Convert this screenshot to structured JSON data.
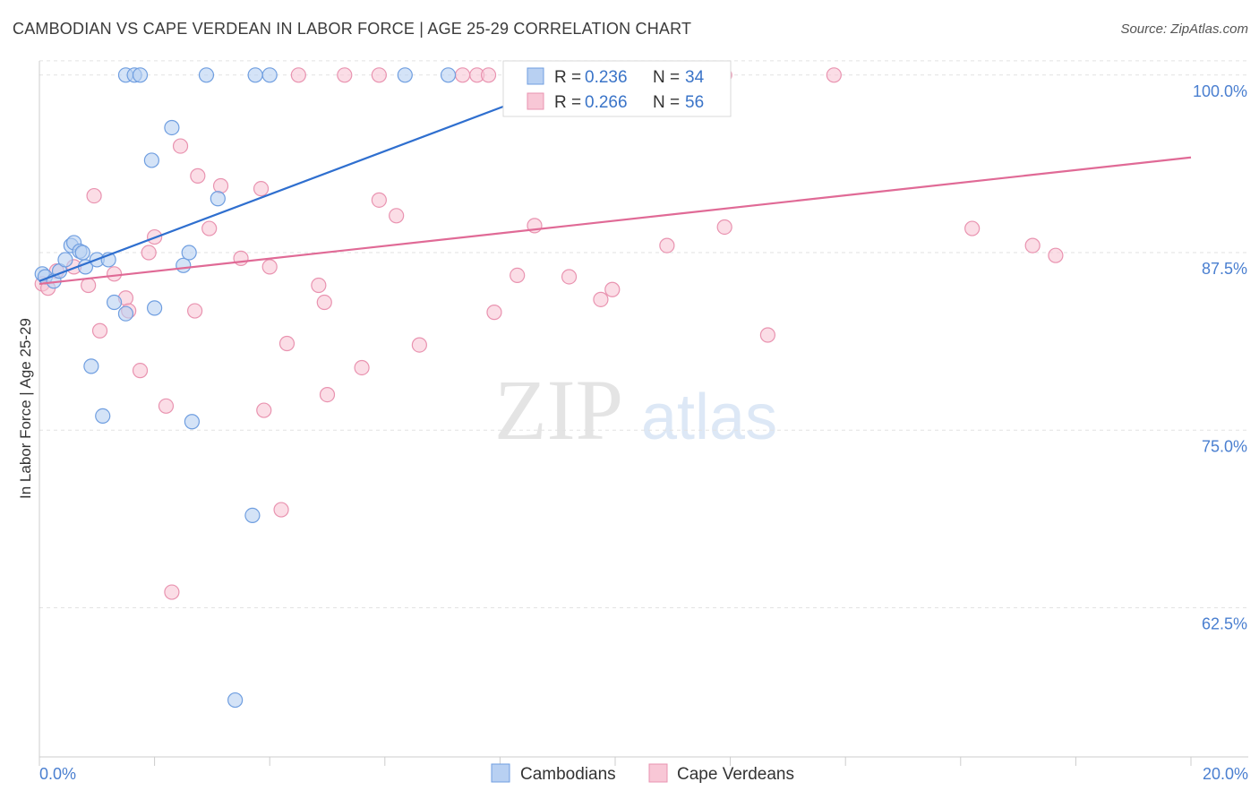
{
  "title": "CAMBODIAN VS CAPE VERDEAN IN LABOR FORCE | AGE 25-29 CORRELATION CHART",
  "source": "Source: ZipAtlas.com",
  "watermark": {
    "zip": "ZIP",
    "atlas": "atlas"
  },
  "colors": {
    "cambodian_fill": "#b8d0f2",
    "cambodian_stroke": "#6f9ee0",
    "cambodian_line": "#2f6fcf",
    "capeverdean_fill": "#f8c7d6",
    "capeverdean_stroke": "#e993b0",
    "capeverdean_line": "#e06a96",
    "tick_label": "#4a7fd0",
    "grid": "#e2e2e2"
  },
  "legend": {
    "rows": [
      {
        "r_label": "R = ",
        "r_value": "0.236",
        "n_label": "N = ",
        "n_value": "34"
      },
      {
        "r_label": "R = ",
        "r_value": "0.266",
        "n_label": "N = ",
        "n_value": "56"
      }
    ]
  },
  "bottom_legend": [
    "Cambodians",
    "Cape Verdeans"
  ],
  "chart_data": {
    "type": "scatter",
    "title": "CAMBODIAN VS CAPE VERDEAN IN LABOR FORCE | AGE 25-29 CORRELATION CHART",
    "xlabel": "",
    "ylabel": "In Labor Force | Age 25-29",
    "xlim": [
      0,
      20
    ],
    "ylim": [
      52,
      101.5
    ],
    "x_tick_labels": [
      "0.0%",
      "20.0%"
    ],
    "y_ticks": [
      62.5,
      75.0,
      87.5,
      100.0
    ],
    "y_tick_labels": [
      "62.5%",
      "75.0%",
      "87.5%",
      "100.0%"
    ],
    "series": [
      {
        "name": "Cambodians",
        "R": 0.236,
        "N": 34,
        "trend": {
          "x": [
            0,
            8.2
          ],
          "y": [
            85.5,
            98.0
          ],
          "dash_x": [
            8.2,
            9.2
          ],
          "dash_y": [
            98.0,
            99.5
          ]
        },
        "points": [
          [
            0.05,
            86.0
          ],
          [
            0.1,
            85.8
          ],
          [
            0.25,
            85.5
          ],
          [
            0.35,
            86.2
          ],
          [
            0.45,
            87.0
          ],
          [
            0.55,
            88.0
          ],
          [
            0.6,
            88.2
          ],
          [
            0.7,
            87.6
          ],
          [
            0.75,
            87.5
          ],
          [
            0.8,
            86.5
          ],
          [
            1.0,
            87.0
          ],
          [
            1.2,
            87.0
          ],
          [
            1.3,
            84.0
          ],
          [
            1.5,
            83.2
          ],
          [
            2.0,
            83.6
          ],
          [
            2.5,
            86.6
          ],
          [
            2.6,
            87.5
          ],
          [
            3.1,
            91.3
          ],
          [
            2.3,
            96.3
          ],
          [
            1.95,
            94.0
          ],
          [
            0.9,
            79.5
          ],
          [
            1.1,
            76.0
          ],
          [
            2.65,
            75.6
          ],
          [
            3.7,
            69.0
          ],
          [
            3.4,
            56.0
          ],
          [
            1.5,
            100.0
          ],
          [
            1.65,
            100.0
          ],
          [
            1.75,
            100.0
          ],
          [
            2.9,
            100.0
          ],
          [
            3.75,
            100.0
          ],
          [
            4.0,
            100.0
          ],
          [
            6.35,
            100.0
          ],
          [
            7.1,
            100.0
          ],
          [
            8.2,
            100.0
          ]
        ]
      },
      {
        "name": "Cape Verdeans",
        "R": 0.266,
        "N": 56,
        "trend": {
          "x": [
            0,
            20
          ],
          "y": [
            85.3,
            94.2
          ]
        },
        "points": [
          [
            0.05,
            85.3
          ],
          [
            0.3,
            86.2
          ],
          [
            0.6,
            86.5
          ],
          [
            0.85,
            85.2
          ],
          [
            1.3,
            86.0
          ],
          [
            0.95,
            91.5
          ],
          [
            1.05,
            82.0
          ],
          [
            1.5,
            84.3
          ],
          [
            1.55,
            83.4
          ],
          [
            1.75,
            79.2
          ],
          [
            1.9,
            87.5
          ],
          [
            2.0,
            88.6
          ],
          [
            2.2,
            76.7
          ],
          [
            2.45,
            95.0
          ],
          [
            2.7,
            83.4
          ],
          [
            2.75,
            92.9
          ],
          [
            2.95,
            89.2
          ],
          [
            3.15,
            92.2
          ],
          [
            3.5,
            87.1
          ],
          [
            3.9,
            76.4
          ],
          [
            3.85,
            92.0
          ],
          [
            4.0,
            86.5
          ],
          [
            4.2,
            69.4
          ],
          [
            4.3,
            81.1
          ],
          [
            4.85,
            85.2
          ],
          [
            4.95,
            84.0
          ],
          [
            5.0,
            77.5
          ],
          [
            5.6,
            79.4
          ],
          [
            5.9,
            91.2
          ],
          [
            6.2,
            90.1
          ],
          [
            6.6,
            81.0
          ],
          [
            7.9,
            83.3
          ],
          [
            8.3,
            85.9
          ],
          [
            8.6,
            89.4
          ],
          [
            9.2,
            85.8
          ],
          [
            9.75,
            84.2
          ],
          [
            9.95,
            84.9
          ],
          [
            10.9,
            88.0
          ],
          [
            11.9,
            89.3
          ],
          [
            12.65,
            81.7
          ],
          [
            16.2,
            89.2
          ],
          [
            17.25,
            88.0
          ],
          [
            17.65,
            87.3
          ],
          [
            2.3,
            63.6
          ],
          [
            4.5,
            100.0
          ],
          [
            5.3,
            100.0
          ],
          [
            5.9,
            100.0
          ],
          [
            7.35,
            100.0
          ],
          [
            7.6,
            100.0
          ],
          [
            7.8,
            100.0
          ],
          [
            9.05,
            100.0
          ],
          [
            10.25,
            100.0
          ],
          [
            11.9,
            100.0
          ],
          [
            13.8,
            100.0
          ],
          [
            8.5,
            100.0
          ],
          [
            0.15,
            85.0
          ]
        ]
      }
    ]
  }
}
